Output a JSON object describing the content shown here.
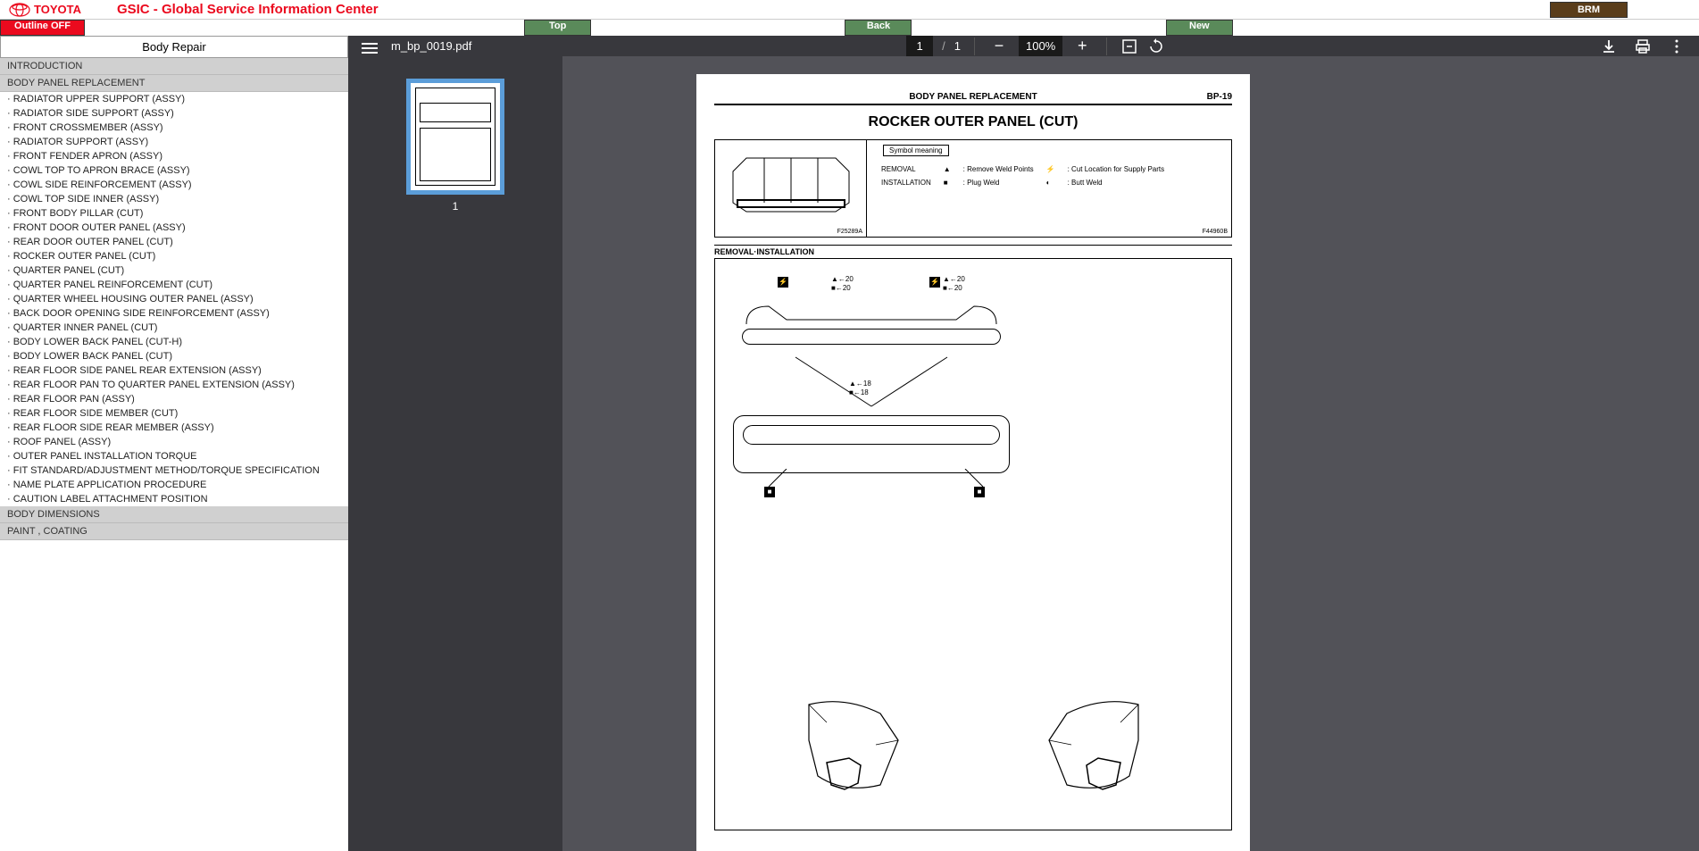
{
  "header": {
    "logo_text": "TOYOTA",
    "app_title": "GSIC - Global Service Information Center",
    "brm_label": "BRM"
  },
  "navbar": {
    "outline_btn": "Outline OFF",
    "top_btn": "Top",
    "back_btn": "Back",
    "new_btn": "New"
  },
  "sidebar": {
    "title": "Body Repair",
    "sections": [
      {
        "header": "INTRODUCTION",
        "items": []
      },
      {
        "header": "BODY PANEL REPLACEMENT",
        "items": [
          "· RADIATOR UPPER SUPPORT (ASSY)",
          "· RADIATOR SIDE SUPPORT (ASSY)",
          "· FRONT CROSSMEMBER (ASSY)",
          "· RADIATOR SUPPORT (ASSY)",
          "· FRONT FENDER APRON (ASSY)",
          "· COWL TOP TO APRON BRACE (ASSY)",
          "· COWL SIDE REINFORCEMENT (ASSY)",
          "· COWL TOP SIDE INNER (ASSY)",
          "· FRONT BODY PILLAR (CUT)",
          "· FRONT DOOR OUTER PANEL (ASSY)",
          "· REAR DOOR OUTER PANEL (CUT)",
          "· ROCKER OUTER PANEL (CUT)",
          "· QUARTER PANEL (CUT)",
          "· QUARTER PANEL REINFORCEMENT (CUT)",
          "· QUARTER WHEEL HOUSING OUTER PANEL (ASSY)",
          "· BACK DOOR OPENING SIDE REINFORCEMENT (ASSY)",
          "· QUARTER INNER PANEL (CUT)",
          "· BODY LOWER BACK PANEL (CUT-H)",
          "· BODY LOWER BACK PANEL (CUT)",
          "· REAR FLOOR SIDE PANEL REAR EXTENSION (ASSY)",
          "· REAR FLOOR PAN TO QUARTER PANEL EXTENSION (ASSY)",
          "· REAR FLOOR PAN (ASSY)",
          "· REAR FLOOR SIDE MEMBER (CUT)",
          "· REAR FLOOR SIDE REAR MEMBER (ASSY)",
          "· ROOF PANEL (ASSY)",
          "· OUTER PANEL INSTALLATION TORQUE",
          "· FIT STANDARD/ADJUSTMENT METHOD/TORQUE SPECIFICATION",
          "· NAME PLATE APPLICATION PROCEDURE",
          "· CAUTION LABEL ATTACHMENT POSITION"
        ]
      },
      {
        "header": "BODY DIMENSIONS",
        "items": []
      },
      {
        "header": "PAINT , COATING",
        "items": []
      }
    ]
  },
  "pdf_toolbar": {
    "filename": "m_bp_0019.pdf",
    "page_current": "1",
    "page_total": "1",
    "zoom": "100%"
  },
  "thumbnail": {
    "number": "1"
  },
  "document": {
    "header_title": "BODY PANEL REPLACEMENT",
    "page_number": "BP-19",
    "main_title": "ROCKER OUTER PANEL (CUT)",
    "symbol_meaning": "Symbol meaning",
    "removal_label": "REMOVAL",
    "installation_label": "INSTALLATION",
    "remove_weld": ": Remove Weld Points",
    "plug_weld": ": Plug Weld",
    "cut_location": ": Cut Location for Supply Parts",
    "butt_weld": ": Butt Weld",
    "ref_left": "F25289A",
    "ref_right": "F44960B",
    "section_title": "REMOVAL·INSTALLATION",
    "annotations": {
      "a20_1": "▲←20",
      "b20_1": "■←20",
      "a20_2": "▲←20",
      "b20_2": "■←20",
      "a18": "▲←18",
      "b18": "■←18"
    }
  }
}
